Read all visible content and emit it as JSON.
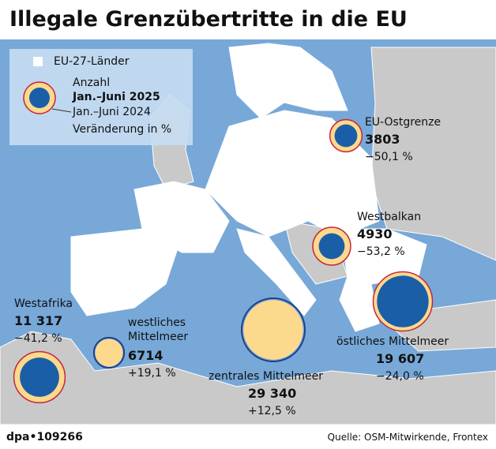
{
  "header": {
    "title": "Illegale Grenzübertritte in die EU"
  },
  "legend": {
    "eu": "EU-27-Länder",
    "count": "Anzahl",
    "current": "Jan.–Juni 2025",
    "prior": "Jan.–Juni 2024",
    "change": "Veränderung in %"
  },
  "routes": [
    {
      "name": "EU-Ostgrenze",
      "count": 3803,
      "count_prior": 7620,
      "change": -50.1,
      "change_label": "−50,1 %"
    },
    {
      "name": "Westbalkan",
      "count": 4930,
      "count_prior": 10530,
      "change": -53.2,
      "change_label": "−53,2 %"
    },
    {
      "name": "östliches Mittelmeer",
      "count": 19607,
      "count_label": "19 607",
      "count_prior": 25800,
      "change": -24.0,
      "change_label": "−24,0 %"
    },
    {
      "name": "zentrales Mittelmeer",
      "count": 29340,
      "count_label": "29 340",
      "count_prior": 26080,
      "change": 12.5,
      "change_label": "+12,5 %"
    },
    {
      "name": "westliches Mittelmeer",
      "count": 6714,
      "count_prior": 5640,
      "change": 19.1,
      "change_label": "+19,1 %"
    },
    {
      "name": "Westafrika",
      "count": 11317,
      "count_label": "11 317",
      "count_prior": 19250,
      "change": -41.2,
      "change_label": "−41,2 %"
    }
  ],
  "footer": {
    "credit": "dpa•109266",
    "source": "Quelle: OSM-Mitwirkende, Frontex"
  }
}
